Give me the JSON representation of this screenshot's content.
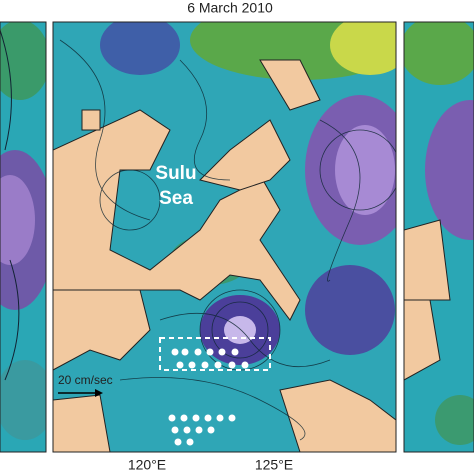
{
  "title": "6 March 2010",
  "labels": {
    "sea": [
      "Sulu",
      "Sea"
    ],
    "scale_arrow": "20 cm/sec"
  },
  "x_axis": {
    "ticks": [
      "120°E",
      "125°E"
    ]
  }
}
